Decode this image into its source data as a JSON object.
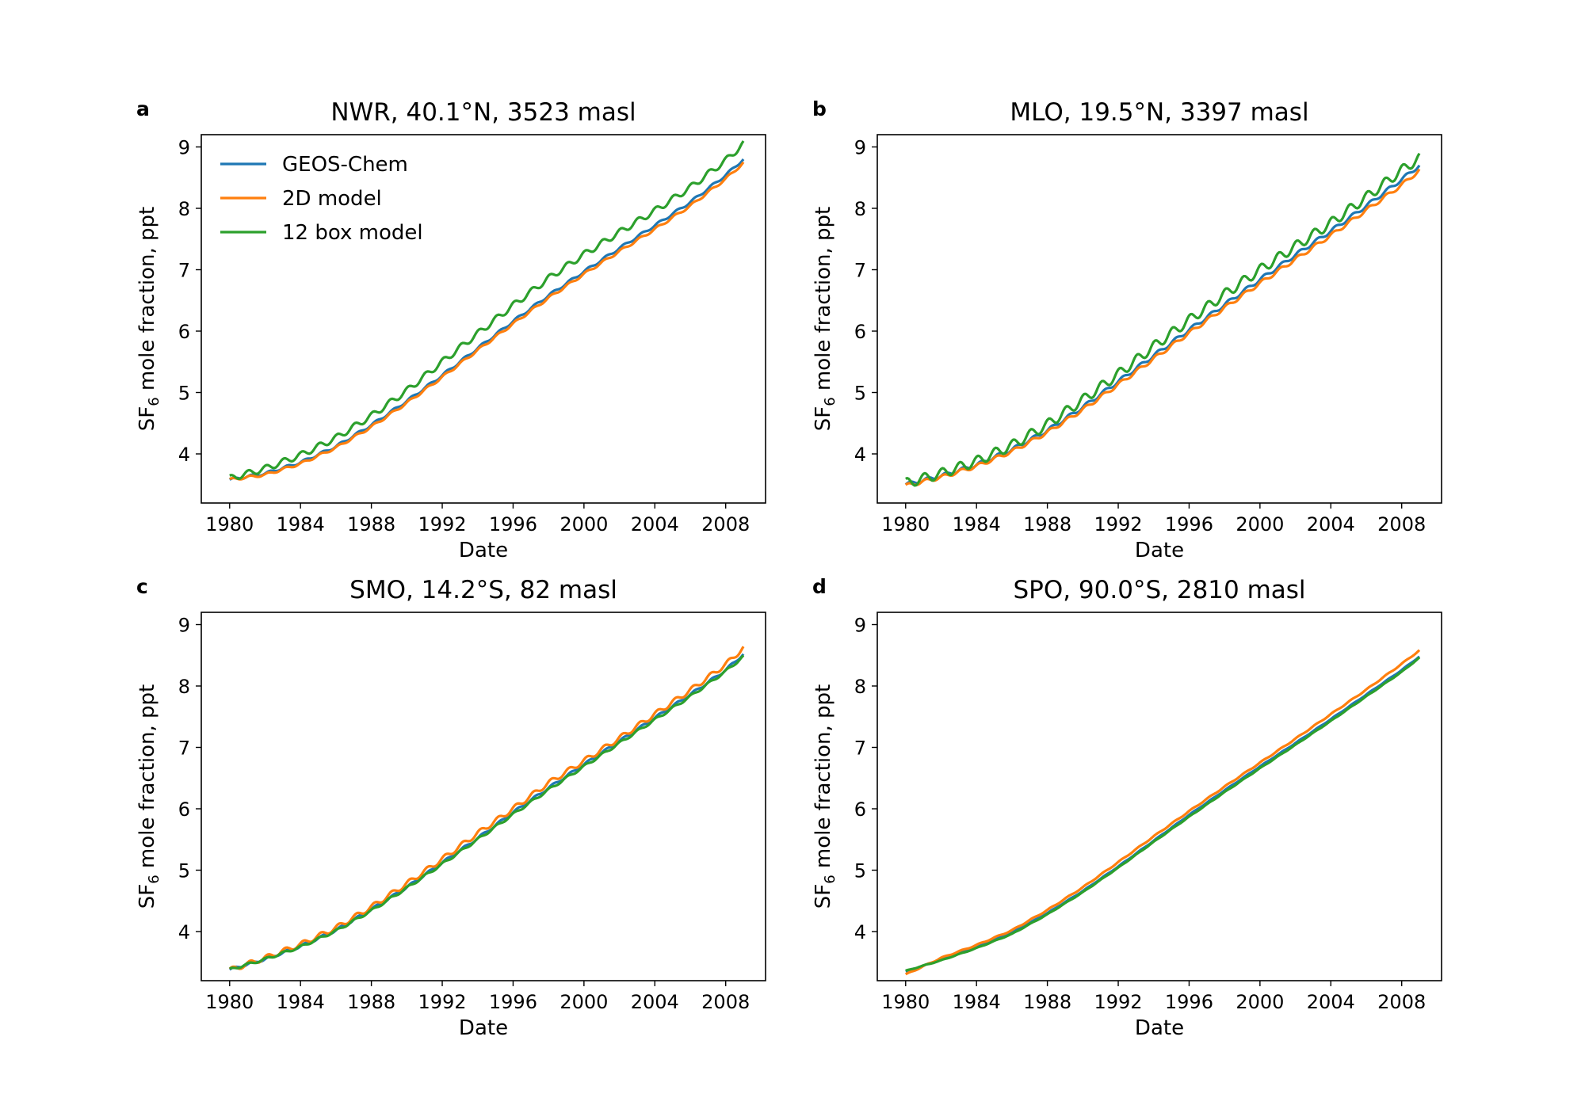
{
  "figure": {
    "legend": {
      "placement": "upper-left",
      "panel": 0,
      "entries": [
        {
          "label": "GEOS-Chem",
          "color": "#1f77b4"
        },
        {
          "label": "2D model",
          "color": "#ff7f0e"
        },
        {
          "label": "12 box model",
          "color": "#2ca02c"
        }
      ]
    }
  },
  "chart_data": [
    {
      "type": "line",
      "panel_letter": "a",
      "title": "NWR, 40.1°N, 3523 masl",
      "xlabel": "Date",
      "ylabel_main": "SF",
      "ylabel_sub": "6",
      "ylabel_rest": " mole fraction, ppt",
      "xlim": [
        1978.4,
        2010.25
      ],
      "ylim": [
        3.2,
        9.2
      ],
      "xticks": [
        "1980",
        "1984",
        "1988",
        "1992",
        "1996",
        "2000",
        "2004",
        "2008"
      ],
      "yticks": [
        "4",
        "5",
        "6",
        "7",
        "8",
        "9"
      ],
      "grid": false,
      "x": [
        1980,
        1982,
        1984,
        1986,
        1988,
        1990,
        1992,
        1994,
        1996,
        1998,
        2000,
        2002,
        2004,
        2006,
        2008,
        2009
      ],
      "seasonal_amplitude": [
        0.02,
        0.02,
        0.05
      ],
      "series": [
        {
          "name": "GEOS-Chem",
          "color": "#1f77b4",
          "values": [
            3.58,
            3.68,
            3.86,
            4.12,
            4.47,
            4.86,
            5.28,
            5.72,
            6.16,
            6.58,
            6.97,
            7.35,
            7.72,
            8.1,
            8.54,
            8.8
          ]
        },
        {
          "name": "2D model",
          "color": "#ff7f0e",
          "values": [
            3.58,
            3.66,
            3.84,
            4.1,
            4.44,
            4.83,
            5.25,
            5.69,
            6.12,
            6.54,
            6.93,
            7.3,
            7.66,
            8.04,
            8.48,
            8.74
          ]
        },
        {
          "name": "12 box model",
          "color": "#2ca02c",
          "values": [
            3.6,
            3.76,
            3.98,
            4.26,
            4.62,
            5.03,
            5.5,
            5.96,
            6.42,
            6.86,
            7.25,
            7.61,
            7.96,
            8.34,
            8.78,
            9.05
          ]
        }
      ]
    },
    {
      "type": "line",
      "panel_letter": "b",
      "title": "MLO, 19.5°N, 3397 masl",
      "xlabel": "Date",
      "ylabel_main": "SF",
      "ylabel_sub": "6",
      "ylabel_rest": " mole fraction, ppt",
      "xlim": [
        1978.4,
        2010.25
      ],
      "ylim": [
        3.2,
        9.2
      ],
      "xticks": [
        "1980",
        "1984",
        "1988",
        "1992",
        "1996",
        "2000",
        "2004",
        "2008"
      ],
      "yticks": [
        "4",
        "5",
        "6",
        "7",
        "8",
        "9"
      ],
      "grid": false,
      "x": [
        1980,
        1982,
        1984,
        1986,
        1988,
        1990,
        1992,
        1994,
        1996,
        1998,
        2000,
        2002,
        2004,
        2006,
        2008,
        2009
      ],
      "seasonal_amplitude": [
        0.03,
        0.03,
        0.08
      ],
      "series": [
        {
          "name": "GEOS-Chem",
          "color": "#1f77b4",
          "values": [
            3.5,
            3.64,
            3.82,
            4.07,
            4.38,
            4.76,
            5.18,
            5.6,
            6.02,
            6.43,
            6.84,
            7.24,
            7.63,
            8.04,
            8.47,
            8.7
          ]
        },
        {
          "name": "2D model",
          "color": "#ff7f0e",
          "values": [
            3.48,
            3.62,
            3.8,
            4.04,
            4.35,
            4.72,
            5.13,
            5.55,
            5.97,
            6.38,
            6.78,
            7.17,
            7.56,
            7.97,
            8.38,
            8.62
          ]
        },
        {
          "name": "12 box model",
          "color": "#2ca02c",
          "values": [
            3.52,
            3.68,
            3.88,
            4.14,
            4.48,
            4.88,
            5.3,
            5.75,
            6.18,
            6.6,
            7.0,
            7.38,
            7.76,
            8.18,
            8.62,
            8.82
          ]
        }
      ]
    },
    {
      "type": "line",
      "panel_letter": "c",
      "title": "SMO, 14.2°S, 82 masl",
      "xlabel": "Date",
      "ylabel_main": "SF",
      "ylabel_sub": "6",
      "ylabel_rest": " mole fraction, ppt",
      "xlim": [
        1978.4,
        2010.25
      ],
      "ylim": [
        3.2,
        9.2
      ],
      "xticks": [
        "1980",
        "1984",
        "1988",
        "1992",
        "1996",
        "2000",
        "2004",
        "2008"
      ],
      "yticks": [
        "4",
        "5",
        "6",
        "7",
        "8",
        "9"
      ],
      "grid": false,
      "x": [
        1980,
        1982,
        1984,
        1986,
        1988,
        1990,
        1992,
        1994,
        1996,
        1998,
        2000,
        2002,
        2004,
        2006,
        2008,
        2009
      ],
      "seasonal_amplitude": [
        0.02,
        0.04,
        0.02
      ],
      "series": [
        {
          "name": "GEOS-Chem",
          "color": "#1f77b4",
          "values": [
            3.38,
            3.55,
            3.76,
            4.02,
            4.36,
            4.72,
            5.12,
            5.52,
            5.94,
            6.34,
            6.72,
            7.1,
            7.48,
            7.86,
            8.26,
            8.52
          ]
        },
        {
          "name": "2D model",
          "color": "#ff7f0e",
          "values": [
            3.37,
            3.57,
            3.79,
            4.06,
            4.4,
            4.78,
            5.18,
            5.6,
            6.0,
            6.42,
            6.78,
            7.15,
            7.54,
            7.93,
            8.35,
            8.62
          ]
        },
        {
          "name": "12 box model",
          "color": "#2ca02c",
          "values": [
            3.38,
            3.55,
            3.75,
            4.01,
            4.34,
            4.71,
            5.1,
            5.5,
            5.91,
            6.31,
            6.69,
            7.07,
            7.45,
            7.83,
            8.24,
            8.48
          ]
        }
      ]
    },
    {
      "type": "line",
      "panel_letter": "d",
      "title": "SPO, 90.0°S, 2810 masl",
      "xlabel": "Date",
      "ylabel_main": "SF",
      "ylabel_sub": "6",
      "ylabel_rest": " mole fraction, ppt",
      "xlim": [
        1978.4,
        2010.25
      ],
      "ylim": [
        3.2,
        9.2
      ],
      "xticks": [
        "1980",
        "1984",
        "1988",
        "1992",
        "1996",
        "2000",
        "2004",
        "2008"
      ],
      "yticks": [
        "4",
        "5",
        "6",
        "7",
        "8",
        "9"
      ],
      "grid": false,
      "x": [
        1980,
        1982,
        1984,
        1986,
        1988,
        1990,
        1992,
        1994,
        1996,
        1998,
        2000,
        2002,
        2004,
        2006,
        2008,
        2009
      ],
      "seasonal_amplitude": [
        0.005,
        0.008,
        0.005
      ],
      "series": [
        {
          "name": "GEOS-Chem",
          "color": "#1f77b4",
          "values": [
            3.35,
            3.54,
            3.74,
            3.98,
            4.3,
            4.66,
            5.06,
            5.48,
            5.9,
            6.3,
            6.69,
            7.07,
            7.46,
            7.86,
            8.26,
            8.48
          ]
        },
        {
          "name": "2D model",
          "color": "#ff7f0e",
          "values": [
            3.3,
            3.57,
            3.78,
            4.02,
            4.35,
            4.72,
            5.13,
            5.55,
            5.96,
            6.36,
            6.75,
            7.14,
            7.54,
            7.94,
            8.36,
            8.58
          ]
        },
        {
          "name": "12 box model",
          "color": "#2ca02c",
          "values": [
            3.36,
            3.53,
            3.73,
            3.96,
            4.28,
            4.64,
            5.04,
            5.46,
            5.87,
            6.27,
            6.66,
            7.04,
            7.43,
            7.83,
            8.23,
            8.46
          ]
        }
      ]
    }
  ]
}
